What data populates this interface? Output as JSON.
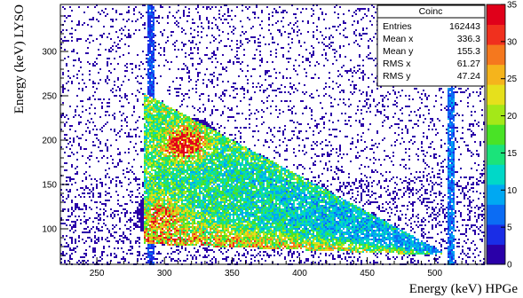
{
  "chart_data": {
    "type": "heatmap",
    "title": "",
    "xlabel": "Energy (keV) HPGe",
    "ylabel": "Energy (keV) LYSO",
    "xlim": [
      223,
      537
    ],
    "ylim": [
      60,
      353
    ],
    "x_ticks": [
      250,
      300,
      350,
      400,
      450,
      500
    ],
    "y_ticks": [
      100,
      150,
      200,
      250,
      300
    ],
    "z_range": [
      0,
      35
    ],
    "z_ticks": [
      0,
      5,
      10,
      15,
      20,
      25,
      30,
      35
    ],
    "grid": false,
    "features": {
      "band_start_x": 285,
      "band_end_x": 505,
      "band_top_at_start": 250,
      "band_bottom_at_start": 85,
      "band_end_y": 72,
      "vertical_line_x": [
        290,
        512
      ],
      "hot_spot": {
        "x": 315,
        "y": 195,
        "value": 35
      }
    },
    "stats_box": {
      "title": "Coinc",
      "entries": [
        {
          "label": "Entries",
          "value": "162443"
        },
        {
          "label": "Mean x",
          "value": "336.3"
        },
        {
          "label": "Mean y",
          "value": "155.3"
        },
        {
          "label": "RMS x",
          "value": "61.27"
        },
        {
          "label": "RMS y",
          "value": "47.24"
        }
      ]
    },
    "palette": [
      "#2a00a8",
      "#1a2de6",
      "#0b6cf4",
      "#00a8f2",
      "#00d8c8",
      "#1be37a",
      "#49e326",
      "#a4e818",
      "#e6e01c",
      "#f5b41c",
      "#f5781e",
      "#f0301e",
      "#e0001a"
    ]
  }
}
